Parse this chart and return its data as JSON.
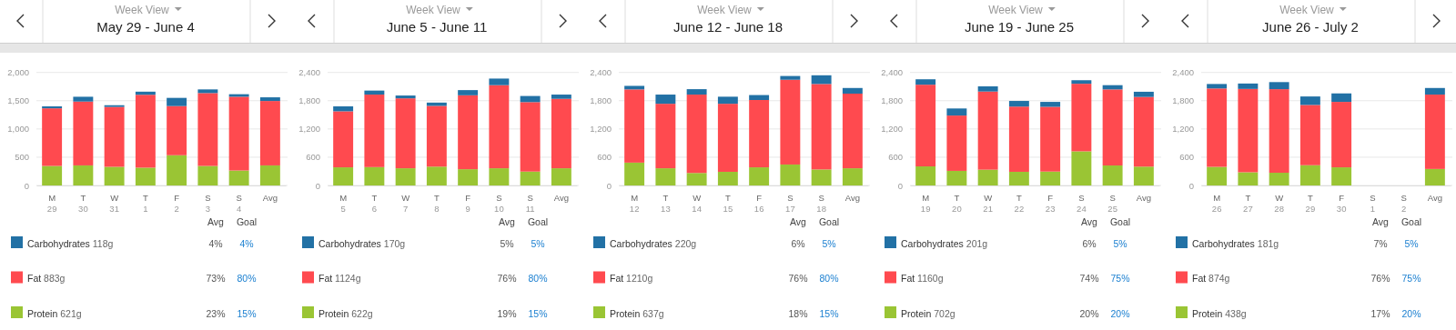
{
  "chart_data": [
    {
      "type": "bar",
      "subtitle": "Week View",
      "title": "May 29 - June 4",
      "categories": [
        "M\n29",
        "T\n30",
        "W\n31",
        "T\n1",
        "F\n2",
        "S\n3",
        "S\n4",
        "Avg"
      ],
      "stacked": true,
      "grid": "y",
      "legend": "bottom",
      "ylim": [
        0,
        2000
      ],
      "yticks": [
        0,
        500,
        {
          "value": 1000,
          "label": "1,000"
        },
        {
          "value": 1500,
          "label": "1,500"
        },
        {
          "value": 2000,
          "label": "2,000"
        }
      ],
      "series": [
        {
          "name": "Protein",
          "color": "#9ac534",
          "values": [
            345,
            355,
            330,
            315,
            535,
            345,
            265,
            355
          ]
        },
        {
          "name": "Fat",
          "color": "#ff4a4f",
          "values": [
            1020,
            1130,
            1060,
            1290,
            870,
            1290,
            1305,
            1140
          ]
        },
        {
          "name": "Carbohydrates",
          "color": "#2271a5",
          "values": [
            35,
            85,
            30,
            55,
            145,
            65,
            45,
            65
          ]
        }
      ],
      "annotations": [
        "Avg",
        "Goal",
        "118g",
        "4%",
        "4%",
        "883g",
        "73%",
        "80%",
        "621g",
        "23%",
        "15%"
      ]
    },
    {
      "type": "bar",
      "subtitle": "Week View",
      "title": "June 5 - June 11",
      "categories": [
        "M\n5",
        "T\n6",
        "W\n7",
        "T\n8",
        "F\n9",
        "S\n10",
        "S\n11",
        "Avg"
      ],
      "stacked": true,
      "grid": "y",
      "legend": "bottom",
      "ylim": [
        0,
        2400
      ],
      "yticks": [
        0,
        600,
        {
          "value": 1200,
          "label": "1,200"
        },
        {
          "value": 1800,
          "label": "1,800"
        },
        {
          "value": 2400,
          "label": "2,400"
        }
      ],
      "series": [
        {
          "name": "Protein",
          "color": "#9ac534",
          "values": [
            385,
            390,
            365,
            400,
            345,
            365,
            295,
            365
          ]
        },
        {
          "name": "Fat",
          "color": "#ff4a4f",
          "values": [
            1190,
            1540,
            1485,
            1290,
            1570,
            1765,
            1475,
            1475
          ]
        },
        {
          "name": "Carbohydrates",
          "color": "#2271a5",
          "values": [
            105,
            85,
            60,
            70,
            110,
            140,
            130,
            90
          ]
        }
      ],
      "annotations": [
        "Avg",
        "Goal",
        "170g",
        "5%",
        "5%",
        "1124g",
        "76%",
        "80%",
        "622g",
        "19%",
        "15%"
      ]
    },
    {
      "type": "bar",
      "subtitle": "Week View",
      "title": "June 12 - June 18",
      "categories": [
        "M\n12",
        "T\n13",
        "W\n14",
        "T\n15",
        "F\n16",
        "S\n17",
        "S\n18",
        "Avg"
      ],
      "stacked": true,
      "grid": "y",
      "legend": "bottom",
      "ylim": [
        0,
        2400
      ],
      "yticks": [
        0,
        600,
        {
          "value": 1200,
          "label": "1,200"
        },
        {
          "value": 1800,
          "label": "1,800"
        },
        {
          "value": 2400,
          "label": "2,400"
        }
      ],
      "series": [
        {
          "name": "Protein",
          "color": "#9ac534",
          "values": [
            485,
            365,
            265,
            290,
            385,
            445,
            340,
            365
          ]
        },
        {
          "name": "Fat",
          "color": "#ff4a4f",
          "values": [
            1555,
            1370,
            1665,
            1445,
            1430,
            1800,
            1815,
            1585
          ]
        },
        {
          "name": "Carbohydrates",
          "color": "#2271a5",
          "values": [
            75,
            195,
            115,
            150,
            105,
            80,
            185,
            120
          ]
        }
      ],
      "annotations": [
        "Avg",
        "Goal",
        "220g",
        "6%",
        "5%",
        "1210g",
        "76%",
        "80%",
        "637g",
        "18%",
        "15%"
      ]
    },
    {
      "type": "bar",
      "subtitle": "Week View",
      "title": "June 19 - June 25",
      "categories": [
        "M\n19",
        "T\n20",
        "W\n21",
        "T\n22",
        "F\n23",
        "S\n24",
        "S\n25",
        "Avg"
      ],
      "stacked": true,
      "grid": "y",
      "legend": "bottom",
      "ylim": [
        0,
        2400
      ],
      "yticks": [
        0,
        600,
        {
          "value": 1200,
          "label": "1,200"
        },
        {
          "value": 1800,
          "label": "1,800"
        },
        {
          "value": 2400,
          "label": "2,400"
        }
      ],
      "series": [
        {
          "name": "Protein",
          "color": "#9ac534",
          "values": [
            405,
            310,
            335,
            290,
            295,
            725,
            425,
            400
          ]
        },
        {
          "name": "Fat",
          "color": "#ff4a4f",
          "values": [
            1735,
            1175,
            1660,
            1385,
            1375,
            1435,
            1615,
            1480
          ]
        },
        {
          "name": "Carbohydrates",
          "color": "#2271a5",
          "values": [
            115,
            150,
            110,
            120,
            105,
            75,
            90,
            110
          ]
        }
      ],
      "annotations": [
        "Avg",
        "Goal",
        "201g",
        "6%",
        "5%",
        "1160g",
        "74%",
        "75%",
        "702g",
        "20%",
        "20%"
      ]
    },
    {
      "type": "bar",
      "subtitle": "Week View",
      "title": "June 26 - July 2",
      "categories": [
        "M\n26",
        "T\n27",
        "W\n28",
        "T\n29",
        "F\n30",
        "S\n1",
        "S\n2",
        "Avg"
      ],
      "stacked": true,
      "grid": "y",
      "legend": "bottom",
      "ylim": [
        0,
        2400
      ],
      "yticks": [
        0,
        600,
        {
          "value": 1200,
          "label": "1,200"
        },
        {
          "value": 1800,
          "label": "1,800"
        },
        {
          "value": 2400,
          "label": "2,400"
        }
      ],
      "series": [
        {
          "name": "Protein",
          "color": "#9ac534",
          "values": [
            395,
            280,
            270,
            430,
            385,
            null,
            null,
            350
          ]
        },
        {
          "name": "Fat",
          "color": "#ff4a4f",
          "values": [
            1665,
            1770,
            1775,
            1280,
            1390,
            null,
            null,
            1580
          ]
        },
        {
          "name": "Carbohydrates",
          "color": "#2271a5",
          "values": [
            95,
            115,
            150,
            180,
            180,
            null,
            null,
            140
          ]
        }
      ],
      "annotations": [
        "Avg",
        "Goal",
        "181g",
        "7%",
        "5%",
        "874g",
        "76%",
        "75%",
        "438g",
        "17%",
        "20%"
      ]
    }
  ]
}
